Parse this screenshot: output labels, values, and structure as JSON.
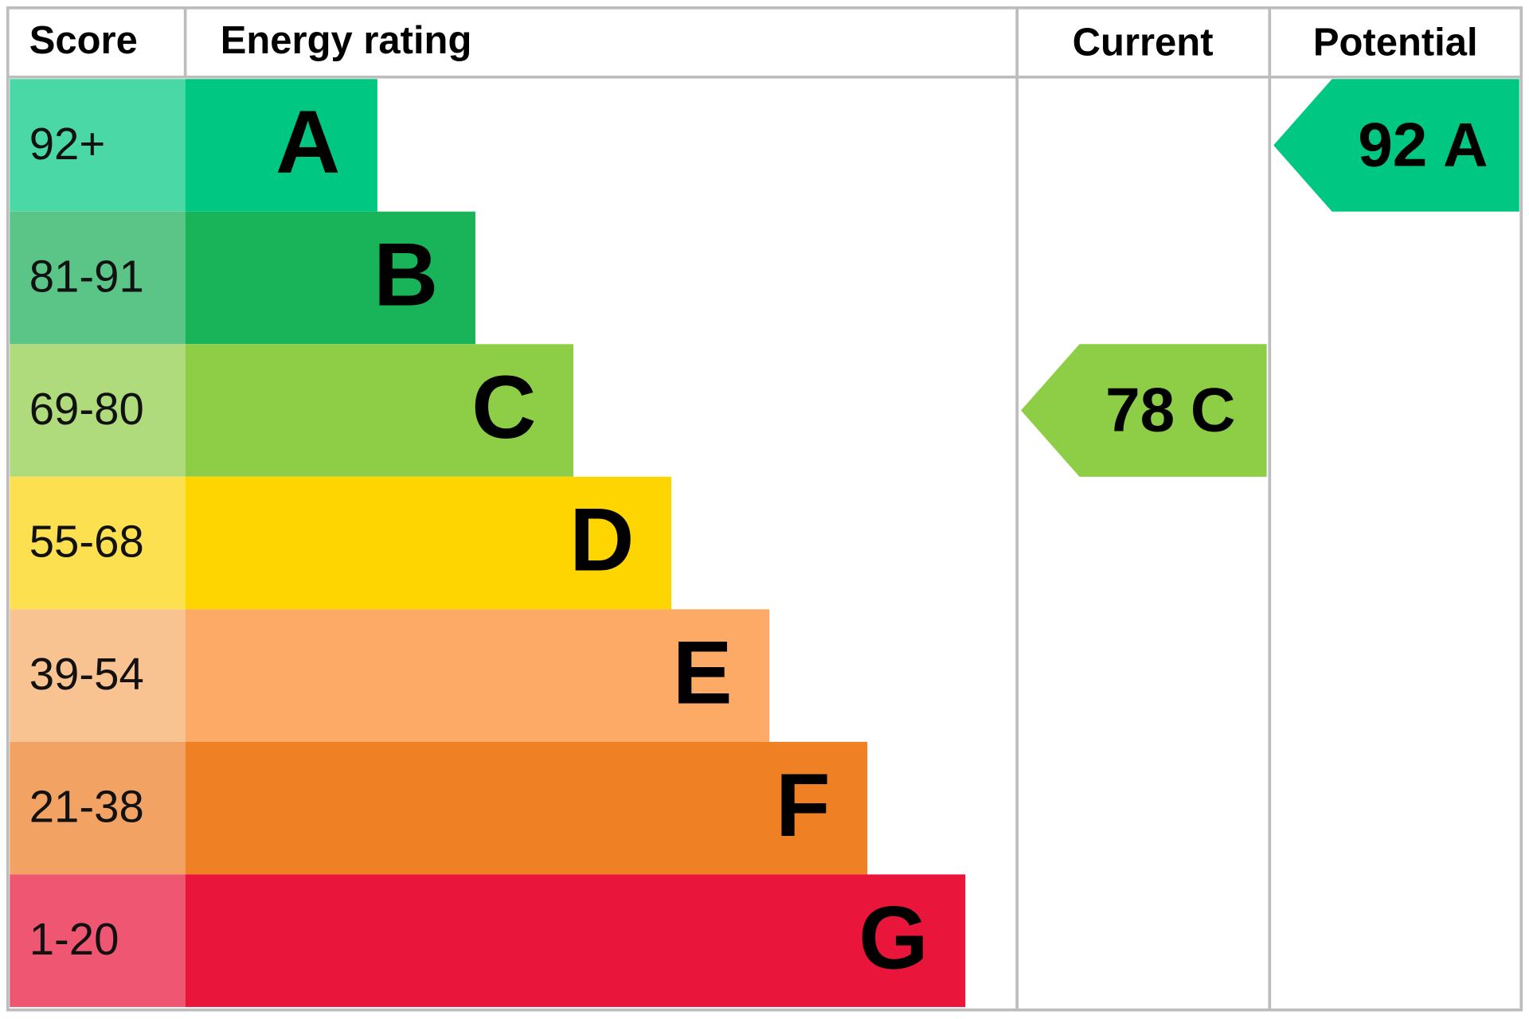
{
  "header": {
    "score": "Score",
    "rating": "Energy rating",
    "current": "Current",
    "potential": "Potential"
  },
  "bands": [
    {
      "score": "92+",
      "letter": "A",
      "color": "#00c781",
      "light": "#4ad8a7"
    },
    {
      "score": "81-91",
      "letter": "B",
      "color": "#19b459",
      "light": "#5ac587"
    },
    {
      "score": "69-80",
      "letter": "C",
      "color": "#8dce46",
      "light": "#afdb7c"
    },
    {
      "score": "55-68",
      "letter": "D",
      "color": "#ffd500",
      "light": "#fde04f"
    },
    {
      "score": "39-54",
      "letter": "E",
      "color": "#fcaa65",
      "light": "#f9c291"
    },
    {
      "score": "21-38",
      "letter": "F",
      "color": "#ef8023",
      "light": "#f2a263"
    },
    {
      "score": "1-20",
      "letter": "G",
      "color": "#e9153b",
      "light": "#ee5672"
    }
  ],
  "current": {
    "score": 78,
    "letter": "C"
  },
  "potential": {
    "score": 92,
    "letter": "A"
  }
}
